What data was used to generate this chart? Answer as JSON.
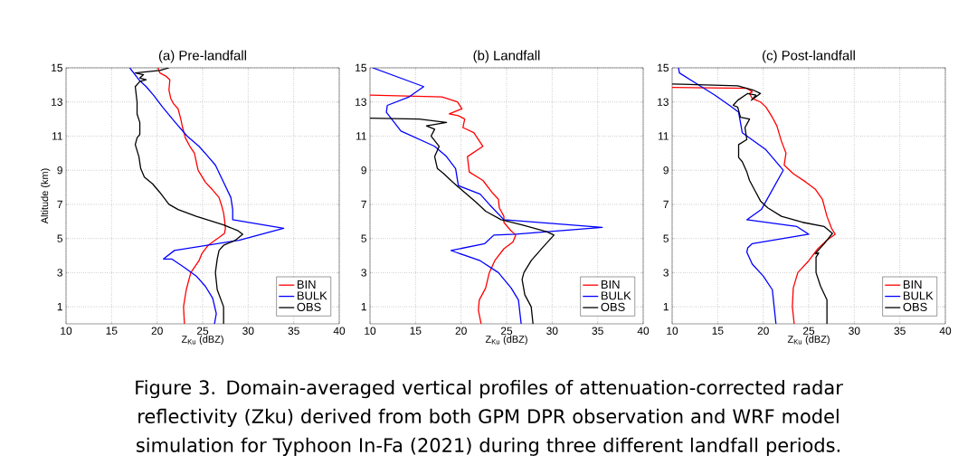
{
  "chart_data": [
    {
      "type": "line",
      "title": "(a) Pre-landfall",
      "xlabel": "Z$_{Ku}$ (dBZ)",
      "ylabel": "Altitude (km)",
      "xlim": [
        10,
        40
      ],
      "xticks": [
        10,
        15,
        20,
        25,
        30,
        35,
        40
      ],
      "ylim": [
        0,
        15
      ],
      "yticks": [
        1,
        3,
        5,
        7,
        9,
        11,
        13,
        15
      ],
      "grid": true,
      "legend": "bottom right",
      "annotations": [
        "Figure 3. Domain-averaged vertical profiles of attenuation-corrected radar reflectivity (Zku) derived from both GPM DPR observation and WRF model simulation for Typhoon In-Fa (2021) during three different landfall periods."
      ],
      "series": [
        {
          "name": "BIN",
          "color": "#ff0000",
          "x": [
            23.0,
            22.9,
            23.2,
            23.7,
            24.6,
            24.9,
            25.6,
            26.1,
            26.9,
            27.4,
            27.5,
            27.4,
            27.3,
            27.1,
            26.8,
            26.0,
            25.3,
            24.5,
            24.3,
            24.1,
            23.6,
            23.1,
            22.8,
            22.6,
            22.3,
            21.8,
            21.5,
            21.3,
            21.4,
            21.0,
            20.3,
            20.1
          ],
          "values": [
            0,
            1,
            2,
            3,
            3.7,
            4.1,
            4.6,
            4.8,
            5.1,
            5.3,
            5.6,
            6.1,
            6.5,
            6.9,
            7.4,
            7.9,
            8.3,
            9.0,
            9.5,
            10.0,
            10.4,
            10.9,
            11.5,
            12.0,
            12.6,
            12.9,
            13.2,
            13.7,
            14.3,
            14.5,
            14.7,
            15
          ]
        },
        {
          "name": "BULK",
          "color": "#0000ff",
          "x": [
            26.3,
            26.5,
            26.1,
            25.3,
            24.3,
            23.0,
            21.6,
            20.7,
            21.9,
            29.0,
            33.9,
            28.3,
            28.3,
            28.1,
            27.3,
            26.4,
            25.6,
            24.6,
            23.3,
            22.0,
            20.6,
            19.6,
            18.8,
            18.0,
            17.0
          ],
          "values": [
            0,
            0.6,
            1.5,
            2.2,
            2.8,
            3.3,
            3.8,
            3.8,
            4.3,
            4.9,
            5.6,
            6.1,
            6.7,
            7.4,
            8.3,
            9.3,
            9.8,
            10.4,
            11.0,
            11.8,
            12.7,
            13.4,
            13.9,
            14.3,
            15
          ]
        },
        {
          "name": "OBS",
          "color": "#000000",
          "x": [
            27.3,
            27.3,
            26.6,
            26.4,
            26.6,
            26.8,
            27.3,
            28.6,
            29.4,
            28.9,
            27.3,
            24.3,
            22.3,
            21.3,
            20.3,
            19.5,
            18.6,
            18.2,
            18.0,
            17.6,
            17.8,
            18.1,
            18.1,
            17.8,
            17.8,
            17.6,
            18.1,
            18.8,
            18.1,
            18.5,
            17.6,
            20.3,
            21.3
          ],
          "values": [
            0,
            1,
            2,
            3,
            3.8,
            4.3,
            4.6,
            4.9,
            5.25,
            5.45,
            5.8,
            6.3,
            6.7,
            7.0,
            7.7,
            8.2,
            8.6,
            9.1,
            9.8,
            10.5,
            10.9,
            11.1,
            11.8,
            12.3,
            13.0,
            13.9,
            14.2,
            14.3,
            14.4,
            14.6,
            14.7,
            14.85,
            15
          ]
        }
      ]
    },
    {
      "type": "line",
      "title": "(b) Landfall",
      "xlabel": "Z$_{Ku}$ (dBZ)",
      "xlim": [
        10,
        40
      ],
      "xticks": [
        10,
        15,
        20,
        25,
        30,
        35,
        40
      ],
      "ylim": [
        0,
        15
      ],
      "yticks": [
        1,
        3,
        5,
        7,
        9,
        11,
        13,
        15
      ],
      "grid": true,
      "legend": "bottom right",
      "series": [
        {
          "name": "BIN",
          "color": "#ff0000",
          "x": [
            22.2,
            21.9,
            22.0,
            22.7,
            23.1,
            23.7,
            24.7,
            25.7,
            26.0,
            25.4,
            24.7,
            24.7,
            24.2,
            24.1,
            23.4,
            22.4,
            20.9,
            20.7,
            22.4,
            21.4,
            20.2,
            20.4,
            19.7,
            18.7,
            20.1,
            19.6,
            17.9,
            10.0
          ],
          "values": [
            0,
            0.8,
            1.4,
            2.1,
            3,
            3.7,
            4.4,
            4.8,
            5.2,
            5.5,
            5.95,
            6.3,
            6.8,
            7.3,
            7.7,
            8.4,
            8.9,
            9.8,
            10.4,
            11.2,
            11.5,
            12.0,
            12.2,
            12.3,
            12.6,
            13.0,
            13.3,
            13.4
          ]
        },
        {
          "name": "BULK",
          "color": "#0000ff",
          "x": [
            26.6,
            26.3,
            25.5,
            24.1,
            22.1,
            19.4,
            18.9,
            22.6,
            23.6,
            26.0,
            35.5,
            24.7,
            23.1,
            22.1,
            19.7,
            19.4,
            18.4,
            17.1,
            13.4,
            11.8,
            11.9,
            14.3,
            15.9,
            10.3
          ],
          "values": [
            0,
            1.4,
            2.1,
            3,
            3.7,
            4.2,
            4.3,
            4.7,
            5.2,
            5.25,
            5.65,
            6.1,
            7.0,
            7.6,
            8.1,
            9.1,
            9.8,
            10.4,
            11.3,
            12.4,
            12.8,
            13.3,
            13.9,
            15
          ]
        },
        {
          "name": "OBS",
          "color": "#000000",
          "x": [
            27.9,
            27.7,
            27.0,
            26.7,
            26.9,
            27.7,
            29.0,
            30.2,
            29.4,
            26.7,
            24.4,
            22.7,
            21.7,
            20.4,
            19.1,
            18.1,
            17.4,
            17.1,
            17.6,
            16.7,
            17.1,
            16.2,
            18.4,
            15.4,
            10.0
          ],
          "values": [
            0,
            1,
            1.7,
            2.6,
            3,
            3.7,
            4.5,
            5.2,
            5.4,
            5.8,
            6.1,
            6.6,
            7.1,
            7.7,
            8.3,
            8.8,
            9.1,
            9.8,
            10.4,
            11.0,
            11.4,
            11.6,
            11.8,
            12.0,
            12.05
          ]
        }
      ]
    },
    {
      "type": "line",
      "title": "(c) Post-landfall",
      "xlabel": "Z$_{Ku}$ (dBZ)",
      "xlim": [
        10,
        40
      ],
      "xticks": [
        10,
        15,
        20,
        25,
        30,
        35,
        40
      ],
      "ylim": [
        0,
        15
      ],
      "yticks": [
        1,
        3,
        5,
        7,
        9,
        11,
        13,
        15
      ],
      "grid": true,
      "legend": "bottom right",
      "series": [
        {
          "name": "BIN",
          "color": "#ff0000",
          "x": [
            23.4,
            23.2,
            23.3,
            23.8,
            25.0,
            26.0,
            27.0,
            27.9,
            27.5,
            27.0,
            26.5,
            25.7,
            24.7,
            23.3,
            22.3,
            22.5,
            22.0,
            21.5,
            21.0,
            20.3,
            19.7,
            18.8,
            18.5,
            18.8,
            18.2,
            10.0
          ],
          "values": [
            0,
            1,
            2.1,
            3,
            3.7,
            4.4,
            4.9,
            5.25,
            5.6,
            6.3,
            7.3,
            7.9,
            8.3,
            8.8,
            9.3,
            10.0,
            10.7,
            11.6,
            12.1,
            12.7,
            13.0,
            13.2,
            13.5,
            13.6,
            13.8,
            13.85
          ]
        },
        {
          "name": "BULK",
          "color": "#0000ff",
          "x": [
            21.4,
            21.2,
            21.0,
            20.0,
            18.8,
            18.2,
            18.3,
            18.8,
            25.0,
            23.7,
            18.2,
            19.8,
            22.2,
            20.3,
            17.7,
            17.3,
            16.3,
            14.7,
            13.2,
            10.8,
            10.7
          ],
          "values": [
            0,
            1,
            2.0,
            2.8,
            3.5,
            4.2,
            4.45,
            4.7,
            5.25,
            5.7,
            6.1,
            6.7,
            9.0,
            10.2,
            11.2,
            12.4,
            12.8,
            13.4,
            13.9,
            14.7,
            15
          ]
        },
        {
          "name": "OBS",
          "color": "#000000",
          "x": [
            27.0,
            27.0,
            26.3,
            25.8,
            25.8,
            26.1,
            25.7,
            26.7,
            27.6,
            26.7,
            24.3,
            22.0,
            20.5,
            19.7,
            19.0,
            18.5,
            18.2,
            17.7,
            17.3,
            17.3,
            18.2,
            18.0,
            18.5,
            17.5,
            17.2,
            16.7,
            17.2,
            18.3,
            19.2,
            18.7,
            19.7,
            18.9,
            17.2,
            10.0
          ],
          "values": [
            0,
            1.4,
            2.2,
            3,
            3.9,
            4.15,
            4.1,
            4.7,
            5.3,
            5.7,
            5.95,
            6.3,
            6.8,
            7.2,
            7.9,
            8.4,
            8.9,
            9.5,
            9.75,
            10.5,
            10.8,
            11.5,
            12.0,
            12.1,
            12.7,
            12.8,
            13.1,
            13.5,
            13.4,
            13.1,
            13.5,
            13.7,
            13.95,
            14.05
          ]
        }
      ]
    }
  ]
}
